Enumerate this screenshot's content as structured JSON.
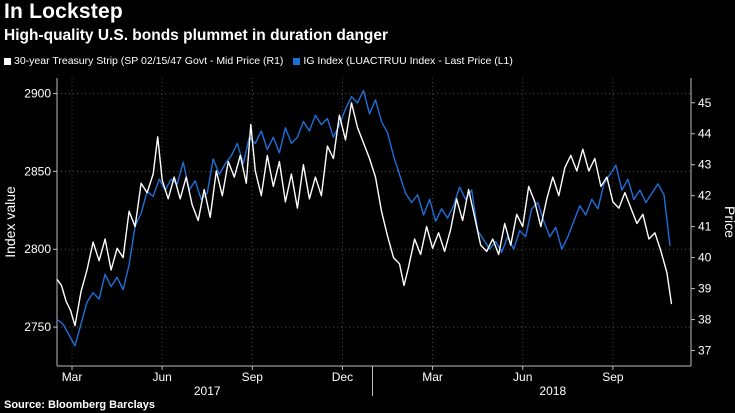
{
  "chart_data": {
    "type": "line",
    "title": "In Lockstep",
    "subtitle": "High-quality U.S. bonds plummet in duration danger",
    "source": "Source: Bloomberg Barclays",
    "y_left_label": "Index value",
    "y_right_label": "Price",
    "y_left_lim": [
      2725,
      2910
    ],
    "y_left_ticks": [
      2750,
      2800,
      2850,
      2900
    ],
    "y_right_lim": [
      36.5,
      45.8
    ],
    "y_right_ticks": [
      37,
      38,
      39,
      40,
      41,
      42,
      43,
      44,
      45
    ],
    "x_lim": [
      0,
      21.1
    ],
    "x_months": [
      {
        "label": "Mar",
        "pos": 0.5
      },
      {
        "label": "Jun",
        "pos": 3.5
      },
      {
        "label": "Sep",
        "pos": 6.5
      },
      {
        "label": "Dec",
        "pos": 9.5
      },
      {
        "label": "Mar",
        "pos": 12.5
      },
      {
        "label": "Jun",
        "pos": 15.5
      },
      {
        "label": "Sep",
        "pos": 18.5
      }
    ],
    "x_years": [
      {
        "label": "2017",
        "pos": 5.0
      },
      {
        "label": "2018",
        "pos": 16.5
      }
    ],
    "series": [
      {
        "name": "30-year Treasury Strip (SP 02/15/47 Govt - Mid Price (R1)",
        "color": "#ffffff",
        "axis": "right",
        "points": [
          [
            0.0,
            39.3
          ],
          [
            0.15,
            39.1
          ],
          [
            0.3,
            38.6
          ],
          [
            0.45,
            38.3
          ],
          [
            0.6,
            37.8
          ],
          [
            0.8,
            38.9
          ],
          [
            1.0,
            39.6
          ],
          [
            1.2,
            40.5
          ],
          [
            1.4,
            39.9
          ],
          [
            1.6,
            40.6
          ],
          [
            1.8,
            39.6
          ],
          [
            2.0,
            40.3
          ],
          [
            2.2,
            40.0
          ],
          [
            2.4,
            41.5
          ],
          [
            2.6,
            41.0
          ],
          [
            2.8,
            42.4
          ],
          [
            3.0,
            42.1
          ],
          [
            3.2,
            42.7
          ],
          [
            3.35,
            43.9
          ],
          [
            3.5,
            42.5
          ],
          [
            3.7,
            41.9
          ],
          [
            3.9,
            42.6
          ],
          [
            4.1,
            41.9
          ],
          [
            4.3,
            42.6
          ],
          [
            4.5,
            41.7
          ],
          [
            4.7,
            41.2
          ],
          [
            4.9,
            42.2
          ],
          [
            5.1,
            41.3
          ],
          [
            5.3,
            42.8
          ],
          [
            5.5,
            42.0
          ],
          [
            5.7,
            43.1
          ],
          [
            5.9,
            42.6
          ],
          [
            6.1,
            43.3
          ],
          [
            6.3,
            42.4
          ],
          [
            6.45,
            44.3
          ],
          [
            6.6,
            42.8
          ],
          [
            6.8,
            42.0
          ],
          [
            7.0,
            43.3
          ],
          [
            7.2,
            42.3
          ],
          [
            7.4,
            43.1
          ],
          [
            7.6,
            41.8
          ],
          [
            7.8,
            42.7
          ],
          [
            8.0,
            41.6
          ],
          [
            8.2,
            43.0
          ],
          [
            8.4,
            41.9
          ],
          [
            8.6,
            42.6
          ],
          [
            8.8,
            42.0
          ],
          [
            9.0,
            43.6
          ],
          [
            9.2,
            43.2
          ],
          [
            9.4,
            44.6
          ],
          [
            9.6,
            43.8
          ],
          [
            9.8,
            45.0
          ],
          [
            10.0,
            44.2
          ],
          [
            10.2,
            43.7
          ],
          [
            10.4,
            43.2
          ],
          [
            10.6,
            42.6
          ],
          [
            10.8,
            41.5
          ],
          [
            11.0,
            40.7
          ],
          [
            11.2,
            40.0
          ],
          [
            11.4,
            39.8
          ],
          [
            11.55,
            39.1
          ],
          [
            11.7,
            39.7
          ],
          [
            11.9,
            40.6
          ],
          [
            12.1,
            40.1
          ],
          [
            12.3,
            41.0
          ],
          [
            12.5,
            40.3
          ],
          [
            12.7,
            40.8
          ],
          [
            12.9,
            40.2
          ],
          [
            13.1,
            40.9
          ],
          [
            13.3,
            41.9
          ],
          [
            13.5,
            41.2
          ],
          [
            13.7,
            42.2
          ],
          [
            13.9,
            41.3
          ],
          [
            14.1,
            40.4
          ],
          [
            14.3,
            40.2
          ],
          [
            14.5,
            40.6
          ],
          [
            14.7,
            40.1
          ],
          [
            14.9,
            41.1
          ],
          [
            15.1,
            40.4
          ],
          [
            15.3,
            41.4
          ],
          [
            15.5,
            41.0
          ],
          [
            15.7,
            42.3
          ],
          [
            15.9,
            41.8
          ],
          [
            16.1,
            41.0
          ],
          [
            16.3,
            41.9
          ],
          [
            16.5,
            42.6
          ],
          [
            16.7,
            42.0
          ],
          [
            16.9,
            42.9
          ],
          [
            17.1,
            43.3
          ],
          [
            17.3,
            42.8
          ],
          [
            17.5,
            43.5
          ],
          [
            17.7,
            42.8
          ],
          [
            17.9,
            43.2
          ],
          [
            18.1,
            42.3
          ],
          [
            18.3,
            42.6
          ],
          [
            18.5,
            41.8
          ],
          [
            18.7,
            41.6
          ],
          [
            18.9,
            42.1
          ],
          [
            19.1,
            41.6
          ],
          [
            19.3,
            41.1
          ],
          [
            19.5,
            41.4
          ],
          [
            19.7,
            40.6
          ],
          [
            19.9,
            40.8
          ],
          [
            20.1,
            40.2
          ],
          [
            20.3,
            39.5
          ],
          [
            20.45,
            38.5
          ]
        ]
      },
      {
        "name": "IG Index (LUACTRUU Index - Last Price (L1)",
        "color": "#1e6fd9",
        "axis": "left",
        "points": [
          [
            0.0,
            2755
          ],
          [
            0.2,
            2752
          ],
          [
            0.4,
            2745
          ],
          [
            0.6,
            2738
          ],
          [
            0.8,
            2752
          ],
          [
            1.0,
            2766
          ],
          [
            1.2,
            2772
          ],
          [
            1.4,
            2768
          ],
          [
            1.6,
            2784
          ],
          [
            1.8,
            2776
          ],
          [
            2.0,
            2782
          ],
          [
            2.2,
            2774
          ],
          [
            2.4,
            2790
          ],
          [
            2.6,
            2815
          ],
          [
            2.8,
            2823
          ],
          [
            3.0,
            2837
          ],
          [
            3.2,
            2834
          ],
          [
            3.4,
            2845
          ],
          [
            3.6,
            2838
          ],
          [
            3.8,
            2845
          ],
          [
            4.0,
            2842
          ],
          [
            4.2,
            2856
          ],
          [
            4.4,
            2838
          ],
          [
            4.6,
            2844
          ],
          [
            4.8,
            2832
          ],
          [
            5.0,
            2836
          ],
          [
            5.2,
            2858
          ],
          [
            5.4,
            2848
          ],
          [
            5.6,
            2855
          ],
          [
            5.8,
            2860
          ],
          [
            6.0,
            2868
          ],
          [
            6.2,
            2855
          ],
          [
            6.4,
            2872
          ],
          [
            6.6,
            2868
          ],
          [
            6.8,
            2876
          ],
          [
            7.0,
            2864
          ],
          [
            7.2,
            2872
          ],
          [
            7.4,
            2862
          ],
          [
            7.6,
            2878
          ],
          [
            7.8,
            2868
          ],
          [
            8.0,
            2872
          ],
          [
            8.2,
            2882
          ],
          [
            8.4,
            2876
          ],
          [
            8.6,
            2886
          ],
          [
            8.8,
            2880
          ],
          [
            9.0,
            2884
          ],
          [
            9.2,
            2872
          ],
          [
            9.4,
            2880
          ],
          [
            9.6,
            2890
          ],
          [
            9.8,
            2898
          ],
          [
            10.0,
            2894
          ],
          [
            10.2,
            2902
          ],
          [
            10.4,
            2887
          ],
          [
            10.6,
            2896
          ],
          [
            10.8,
            2882
          ],
          [
            11.0,
            2875
          ],
          [
            11.2,
            2860
          ],
          [
            11.4,
            2848
          ],
          [
            11.6,
            2836
          ],
          [
            11.8,
            2830
          ],
          [
            12.0,
            2835
          ],
          [
            12.2,
            2822
          ],
          [
            12.4,
            2832
          ],
          [
            12.6,
            2818
          ],
          [
            12.8,
            2826
          ],
          [
            13.0,
            2820
          ],
          [
            13.2,
            2828
          ],
          [
            13.4,
            2840
          ],
          [
            13.6,
            2832
          ],
          [
            13.8,
            2838
          ],
          [
            14.0,
            2812
          ],
          [
            14.2,
            2806
          ],
          [
            14.4,
            2800
          ],
          [
            14.6,
            2805
          ],
          [
            14.8,
            2798
          ],
          [
            15.0,
            2808
          ],
          [
            15.2,
            2800
          ],
          [
            15.4,
            2812
          ],
          [
            15.6,
            2808
          ],
          [
            15.8,
            2826
          ],
          [
            16.0,
            2830
          ],
          [
            16.2,
            2818
          ],
          [
            16.4,
            2808
          ],
          [
            16.6,
            2814
          ],
          [
            16.8,
            2800
          ],
          [
            17.0,
            2808
          ],
          [
            17.2,
            2818
          ],
          [
            17.4,
            2828
          ],
          [
            17.6,
            2822
          ],
          [
            17.8,
            2832
          ],
          [
            18.0,
            2826
          ],
          [
            18.2,
            2842
          ],
          [
            18.4,
            2848
          ],
          [
            18.6,
            2854
          ],
          [
            18.8,
            2838
          ],
          [
            19.0,
            2845
          ],
          [
            19.2,
            2832
          ],
          [
            19.4,
            2838
          ],
          [
            19.6,
            2830
          ],
          [
            19.8,
            2836
          ],
          [
            20.0,
            2842
          ],
          [
            20.2,
            2835
          ],
          [
            20.4,
            2802
          ]
        ]
      }
    ]
  }
}
